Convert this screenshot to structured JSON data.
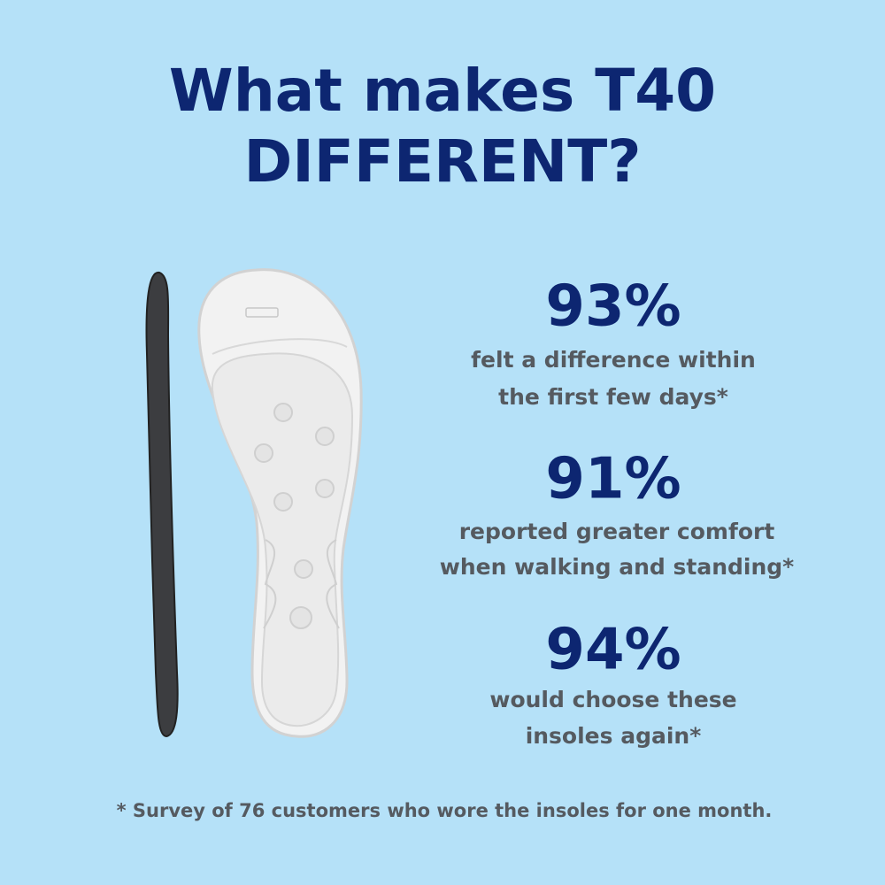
{
  "header": {
    "title": [
      "What makes T40",
      "DIFFERENT?"
    ]
  },
  "stats": [
    {
      "value": "93%",
      "lines": [
        "felt a difference within",
        "the first few days*"
      ]
    },
    {
      "value": "91%",
      "lines": [
        "reported greater comfort",
        "when walking and standing*"
      ]
    },
    {
      "value": "94%",
      "lines": [
        "would choose these",
        "insoles again*"
      ]
    }
  ],
  "footnote": "* Survey of 76 customers who wore the insoles for one month."
}
